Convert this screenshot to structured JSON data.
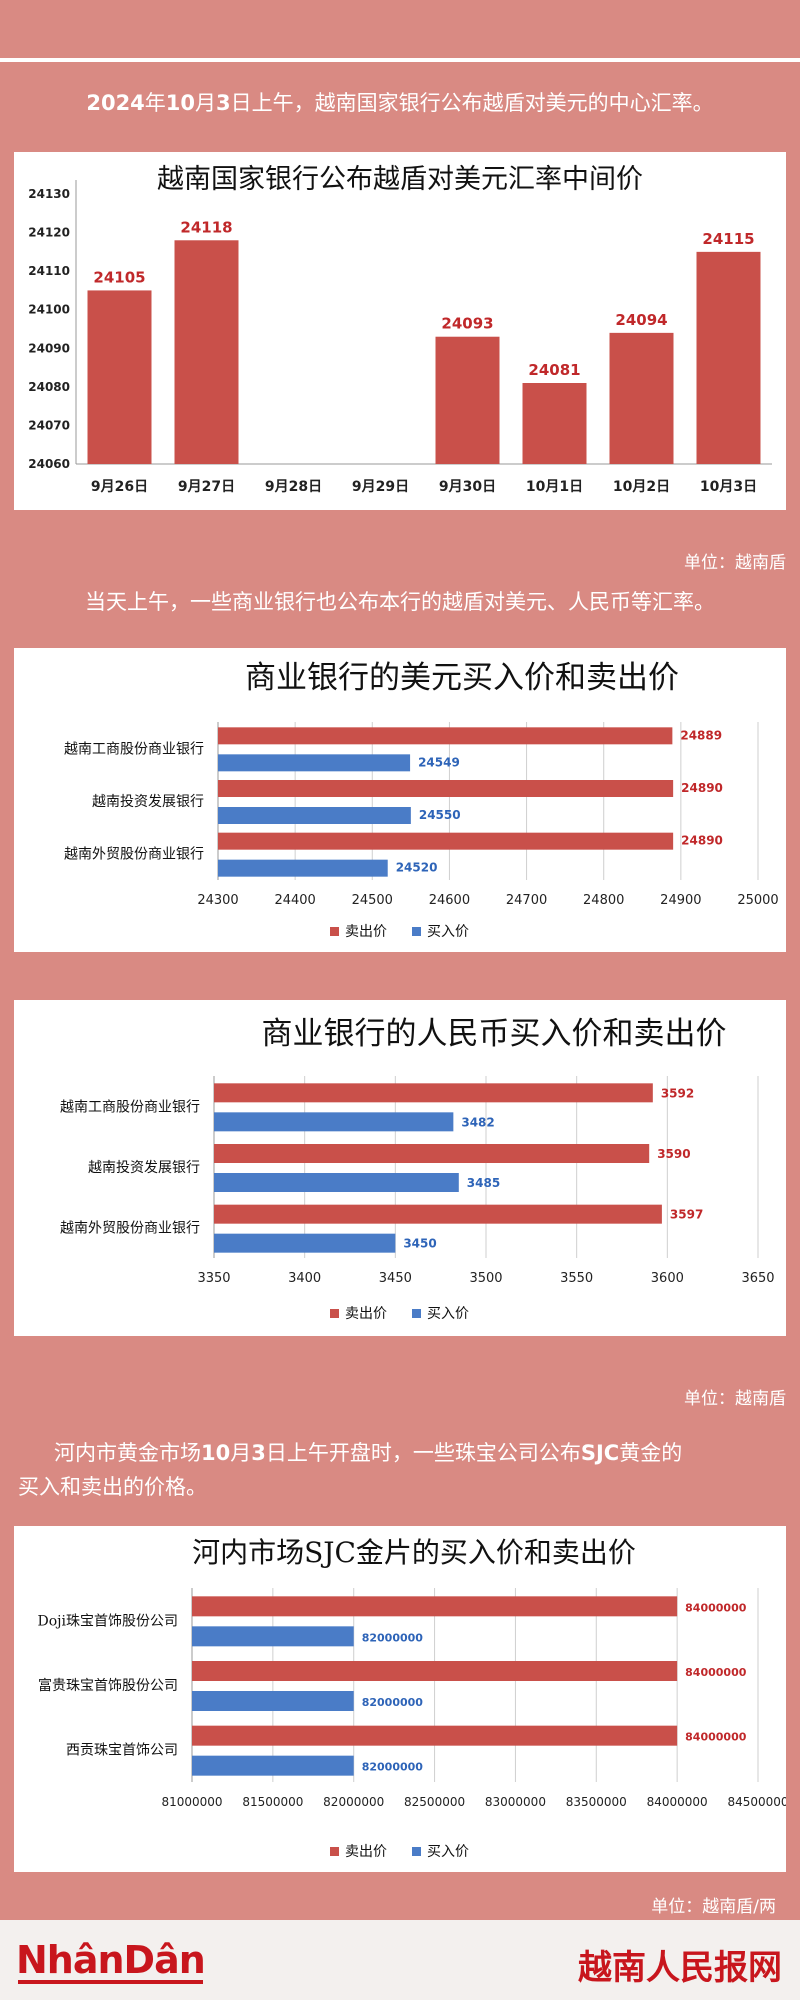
{
  "intro": {
    "prefix_bold": "2024",
    "text_1": "年",
    "bold_2": "10",
    "text_2": "月",
    "bold_3": "3",
    "text_3": "日上午，越南国家银行公布越盾对美元的中心汇率。"
  },
  "unit_1": "单位：越南盾",
  "para_2": "当天上午，一些商业银行也公布本行的越盾对美元、人民币等汇率。",
  "unit_2": "单位：越南盾",
  "para_3": {
    "text_1": "河内市黄金市场",
    "bold_1": "10",
    "text_2": "月",
    "bold_2": "3",
    "text_3": "日上午开盘时，一些珠宝公司公布",
    "bold_3": "SJC",
    "text_4": "黄金的",
    "line_2": "买入和卖出的价格。"
  },
  "unit_3": "单位：越南盾/两",
  "footer": {
    "logo_left": "NhânDân",
    "logo_right": "越南人民报网"
  },
  "colors": {
    "sell": "#c9504a",
    "buy": "#4a7cc7",
    "background": "#d98a83"
  },
  "chart_data": [
    {
      "type": "bar",
      "title": "越南国家银行公布越盾对美元汇率中间价",
      "categories": [
        "9月26日",
        "9月27日",
        "9月28日",
        "9月29日",
        "9月30日",
        "10月1日",
        "10月2日",
        "10月3日"
      ],
      "values": [
        24105,
        24118,
        null,
        null,
        24093,
        24081,
        24094,
        24115
      ],
      "data_labels": [
        "24105",
        "24118",
        "",
        "",
        "24093",
        "24081",
        "24094",
        "24115"
      ],
      "ylim": [
        24060,
        24130
      ],
      "yticks": [
        24060,
        24070,
        24080,
        24090,
        24100,
        24110,
        24120,
        24130
      ],
      "grid": false,
      "legend": "none"
    },
    {
      "type": "bar",
      "orientation": "horizontal",
      "title": "商业银行的美元买入价和卖出价",
      "categories": [
        "越南工商股份商业银行",
        "越南投资发展银行",
        "越南外贸股份商业银行"
      ],
      "series": [
        {
          "name": "卖出价",
          "values": [
            24889,
            24890,
            24890
          ]
        },
        {
          "name": "买入价",
          "values": [
            24549,
            24550,
            24520
          ]
        }
      ],
      "xlim": [
        24300,
        25000
      ],
      "xticks": [
        24300,
        24400,
        24500,
        24600,
        24700,
        24800,
        24900,
        25000
      ],
      "grid": true,
      "legend": "bottom"
    },
    {
      "type": "bar",
      "orientation": "horizontal",
      "title": "商业银行的人民币买入价和卖出价",
      "categories": [
        "越南工商股份商业银行",
        "越南投资发展银行",
        "越南外贸股份商业银行"
      ],
      "series": [
        {
          "name": "卖出价",
          "values": [
            3592,
            3590,
            3597
          ]
        },
        {
          "name": "买入价",
          "values": [
            3482,
            3485,
            3450
          ]
        }
      ],
      "xlim": [
        3350,
        3650
      ],
      "xticks": [
        3350,
        3400,
        3450,
        3500,
        3550,
        3600,
        3650
      ],
      "grid": true,
      "legend": "bottom"
    },
    {
      "type": "bar",
      "orientation": "horizontal",
      "title": "河内市场SJC金片的买入价和卖出价",
      "categories": [
        "Doji珠宝首饰股份公司",
        "富贵珠宝首饰股份公司",
        "西贡珠宝首饰公司"
      ],
      "series": [
        {
          "name": "卖出价",
          "values": [
            84000000,
            84000000,
            84000000
          ]
        },
        {
          "name": "买入价",
          "values": [
            82000000,
            82000000,
            82000000
          ]
        }
      ],
      "xlim": [
        81000000,
        84500000
      ],
      "xticks": [
        81000000,
        81500000,
        82000000,
        82500000,
        83000000,
        83500000,
        84000000,
        84500000
      ],
      "grid": true,
      "legend": "bottom"
    }
  ]
}
